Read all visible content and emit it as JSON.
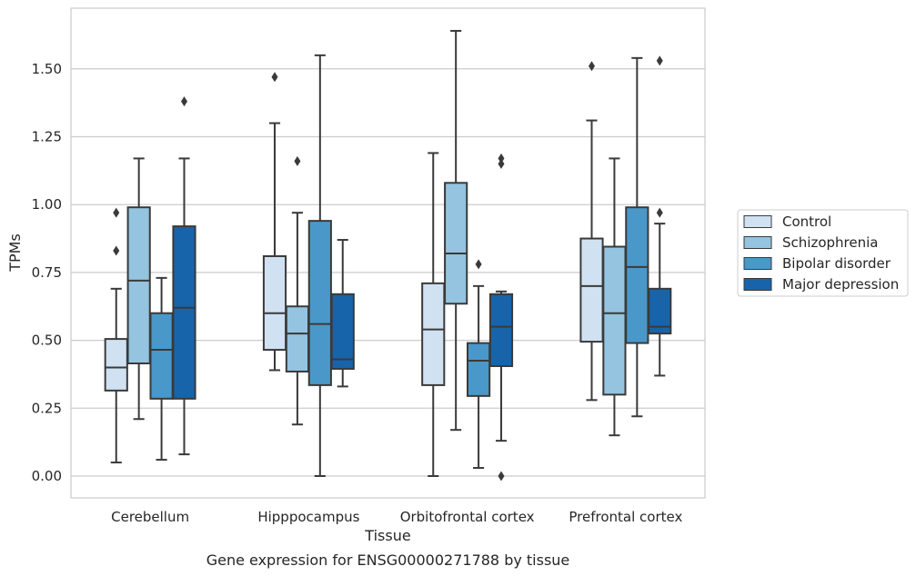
{
  "chart_data": {
    "type": "box",
    "xlabel": "Tissue",
    "ylabel": "TPMs",
    "caption": "Gene expression for ENSG00000271788 by tissue",
    "ylim": [
      -0.08,
      1.73
    ],
    "yticks": [
      0.0,
      0.25,
      0.5,
      0.75,
      1.0,
      1.25,
      1.5
    ],
    "ytick_labels": [
      "0.00",
      "0.25",
      "0.50",
      "0.75",
      "1.00",
      "1.25",
      "1.50"
    ],
    "grid": "horizontal",
    "legend_position": "right",
    "categories": [
      "Cerebellum",
      "Hipppocampus",
      "Orbitofrontal cortex",
      "Prefrontal cortex"
    ],
    "series": [
      {
        "name": "Control",
        "color": "#d0e1f2",
        "boxes": [
          {
            "whislo": 0.05,
            "q1": 0.315,
            "med": 0.4,
            "q3": 0.505,
            "whishi": 0.69,
            "fliers": [
              0.97,
              0.83
            ]
          },
          {
            "whislo": 0.39,
            "q1": 0.465,
            "med": 0.6,
            "q3": 0.81,
            "whishi": 1.3,
            "fliers": [
              1.47
            ]
          },
          {
            "whislo": 0.0,
            "q1": 0.335,
            "med": 0.54,
            "q3": 0.71,
            "whishi": 1.19,
            "fliers": []
          },
          {
            "whislo": 0.28,
            "q1": 0.495,
            "med": 0.7,
            "q3": 0.875,
            "whishi": 1.31,
            "fliers": [
              1.51
            ]
          }
        ]
      },
      {
        "name": "Schizophrenia",
        "color": "#94c4df",
        "boxes": [
          {
            "whislo": 0.21,
            "q1": 0.415,
            "med": 0.72,
            "q3": 0.99,
            "whishi": 1.17,
            "fliers": []
          },
          {
            "whislo": 0.19,
            "q1": 0.385,
            "med": 0.525,
            "q3": 0.625,
            "whishi": 0.97,
            "fliers": [
              1.16
            ]
          },
          {
            "whislo": 0.17,
            "q1": 0.635,
            "med": 0.82,
            "q3": 1.08,
            "whishi": 1.64,
            "fliers": []
          },
          {
            "whislo": 0.15,
            "q1": 0.3,
            "med": 0.6,
            "q3": 0.845,
            "whishi": 1.17,
            "fliers": []
          }
        ]
      },
      {
        "name": "Bipolar disorder",
        "color": "#4a98c9",
        "boxes": [
          {
            "whislo": 0.06,
            "q1": 0.285,
            "med": 0.465,
            "q3": 0.6,
            "whishi": 0.73,
            "fliers": []
          },
          {
            "whislo": 0.0,
            "q1": 0.335,
            "med": 0.56,
            "q3": 0.94,
            "whishi": 1.55,
            "fliers": []
          },
          {
            "whislo": 0.03,
            "q1": 0.295,
            "med": 0.425,
            "q3": 0.49,
            "whishi": 0.7,
            "fliers": [
              0.78
            ]
          },
          {
            "whislo": 0.22,
            "q1": 0.49,
            "med": 0.77,
            "q3": 0.99,
            "whishi": 1.54,
            "fliers": []
          }
        ]
      },
      {
        "name": "Major depression",
        "color": "#1764ab",
        "boxes": [
          {
            "whislo": 0.08,
            "q1": 0.285,
            "med": 0.62,
            "q3": 0.92,
            "whishi": 1.17,
            "fliers": [
              1.38
            ]
          },
          {
            "whislo": 0.33,
            "q1": 0.395,
            "med": 0.43,
            "q3": 0.67,
            "whishi": 0.87,
            "fliers": []
          },
          {
            "whislo": 0.13,
            "q1": 0.405,
            "med": 0.55,
            "q3": 0.67,
            "whishi": 0.68,
            "fliers": [
              1.17,
              1.15,
              0.0
            ]
          },
          {
            "whislo": 0.37,
            "q1": 0.525,
            "med": 0.55,
            "q3": 0.69,
            "whishi": 0.93,
            "fliers": [
              1.53,
              0.97
            ]
          }
        ]
      }
    ]
  }
}
